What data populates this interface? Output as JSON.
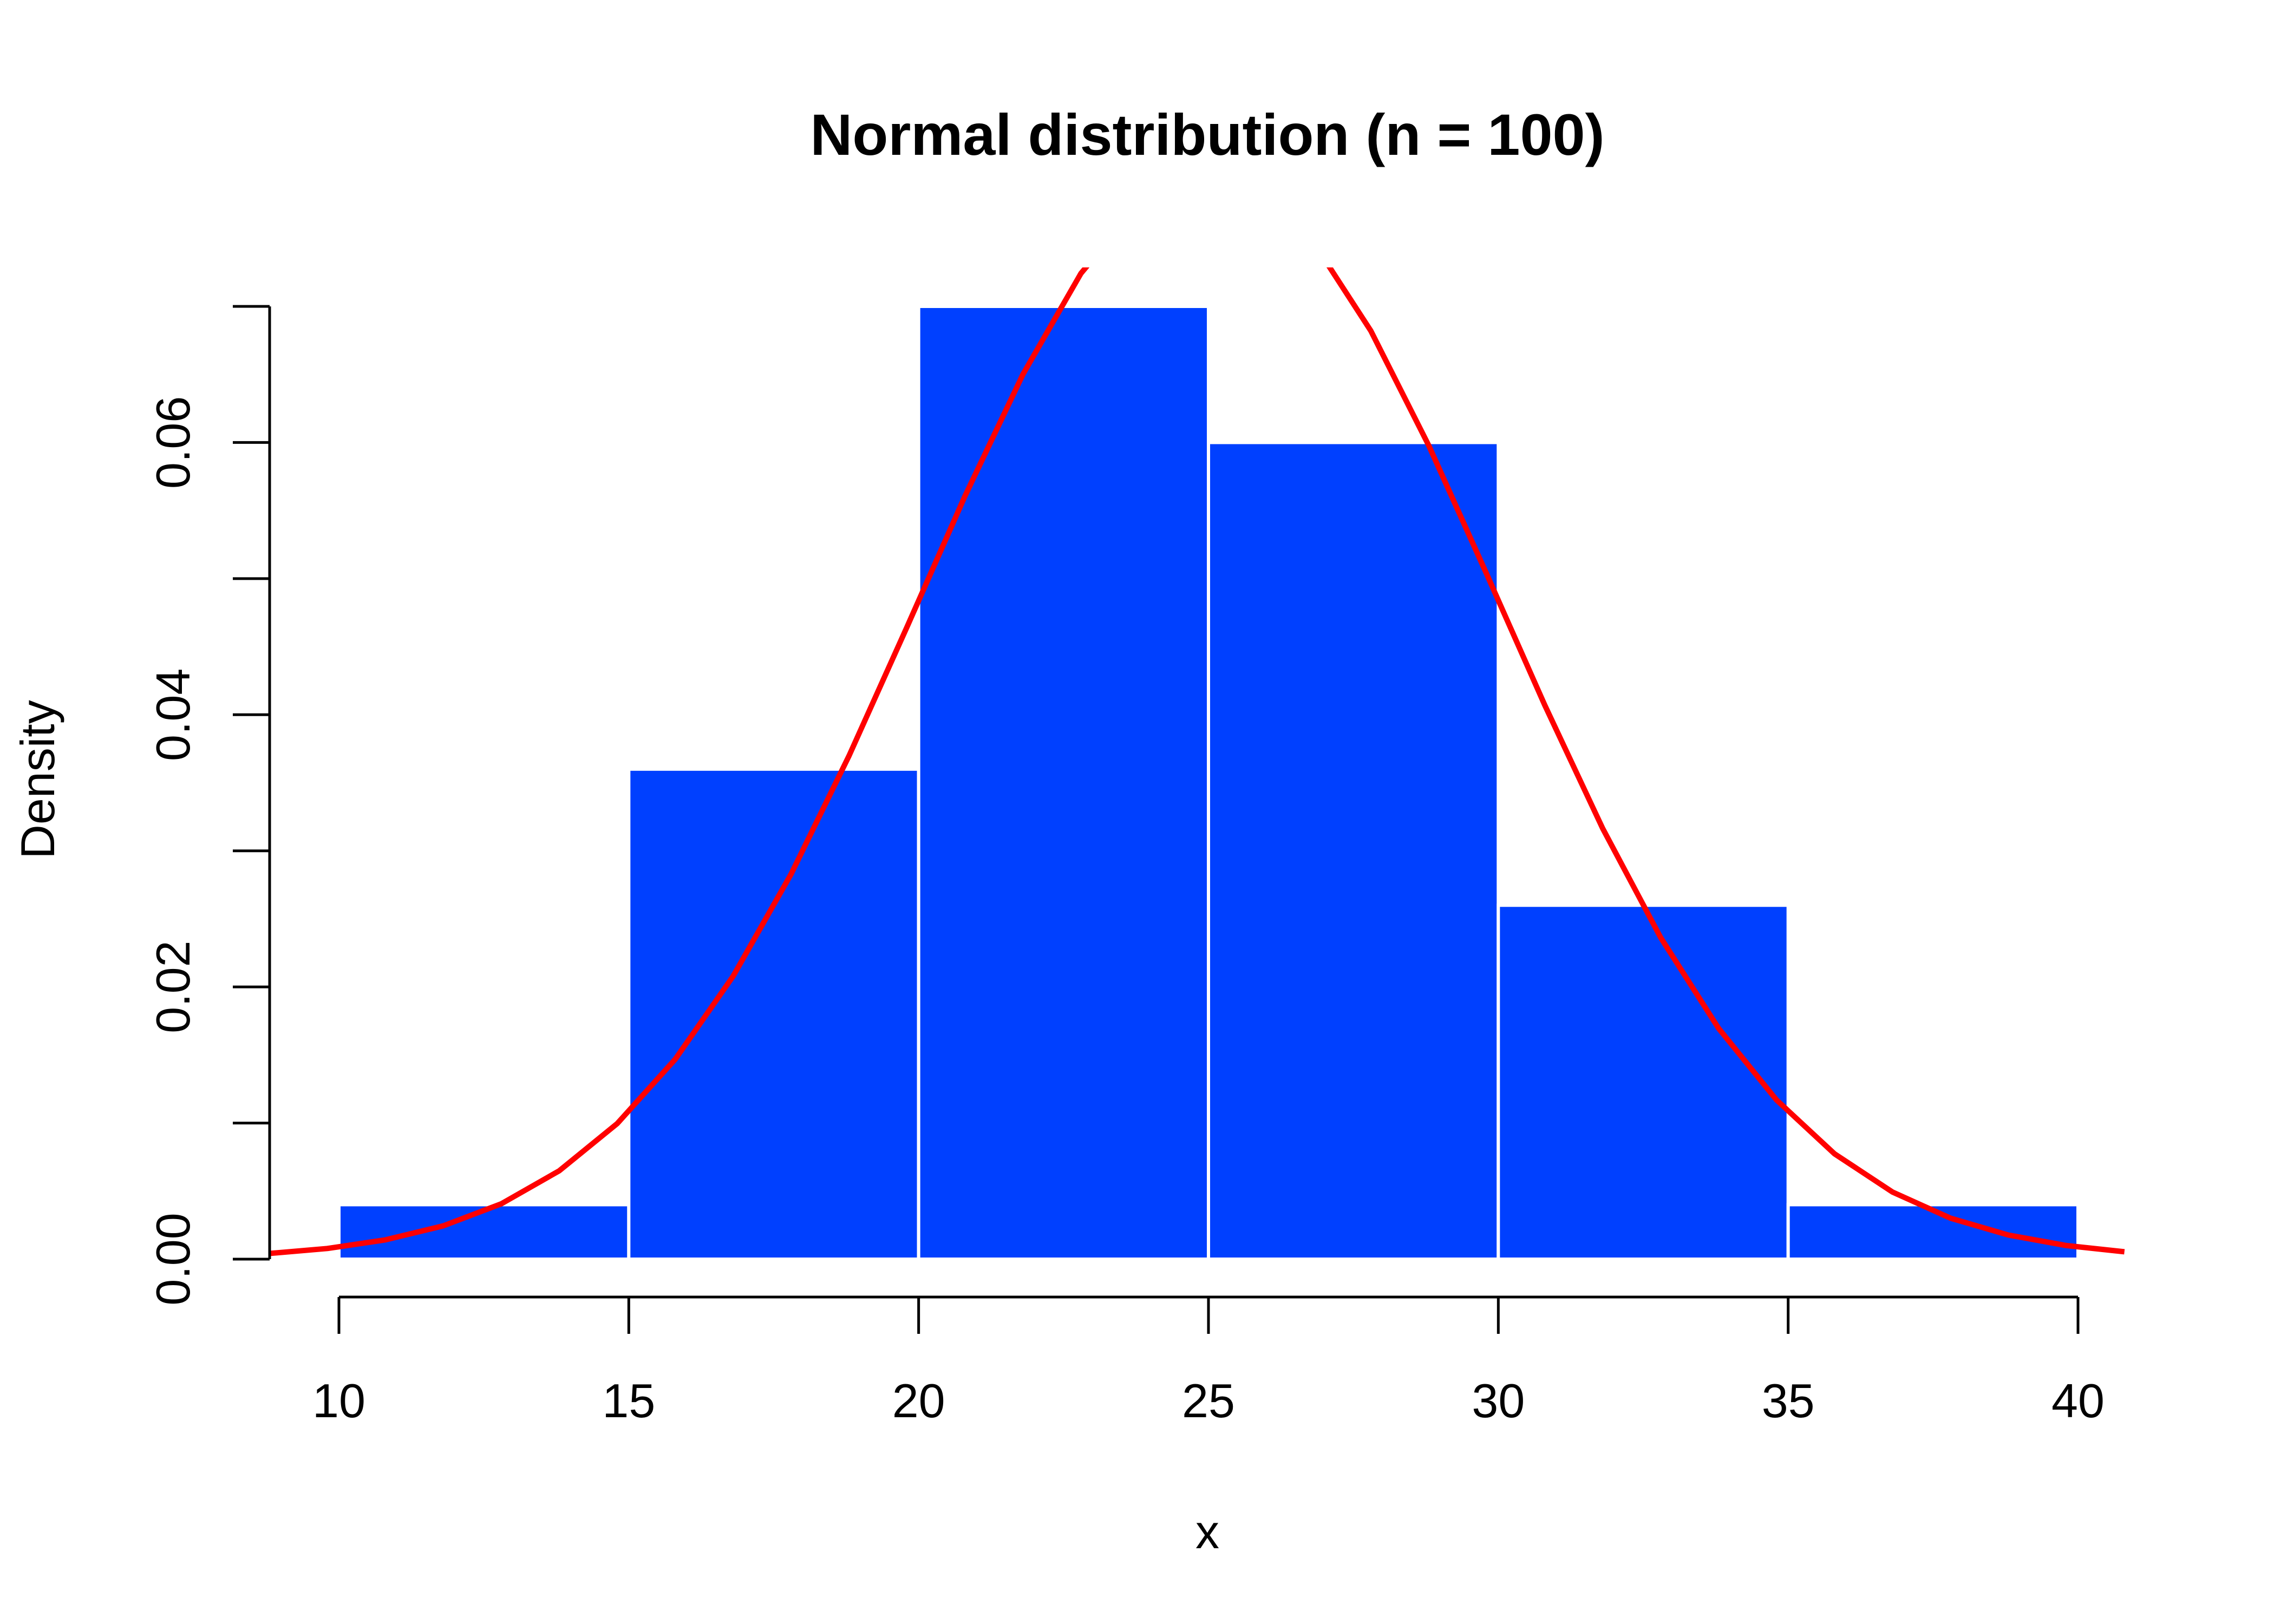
{
  "chart_data": {
    "type": "bar",
    "subtype": "histogram-with-density-curve",
    "title": "Normal distribution (n = 100)",
    "xlabel": "x",
    "ylabel": "Density",
    "xlim": [
      10,
      40
    ],
    "ylim": [
      0,
      0.07
    ],
    "x_ticks": [
      "10",
      "15",
      "20",
      "25",
      "30",
      "35",
      "40"
    ],
    "y_ticks": [
      "0.00",
      "0.02",
      "0.04",
      "0.06"
    ],
    "bins": [
      {
        "start": 10,
        "end": 15,
        "density": 0.004
      },
      {
        "start": 15,
        "end": 20,
        "density": 0.036
      },
      {
        "start": 20,
        "end": 25,
        "density": 0.07
      },
      {
        "start": 25,
        "end": 30,
        "density": 0.06
      },
      {
        "start": 30,
        "end": 35,
        "density": 0.026
      },
      {
        "start": 35,
        "end": 40,
        "density": 0.004
      }
    ],
    "density_curve": {
      "distribution": "normal",
      "mean": 25,
      "sd": 5
    },
    "grid": false,
    "legend": "none",
    "colors": {
      "bar_fill": "#0040ff",
      "bar_border": "#ffffff",
      "curve": "#ff0000",
      "axis": "#000000"
    }
  }
}
